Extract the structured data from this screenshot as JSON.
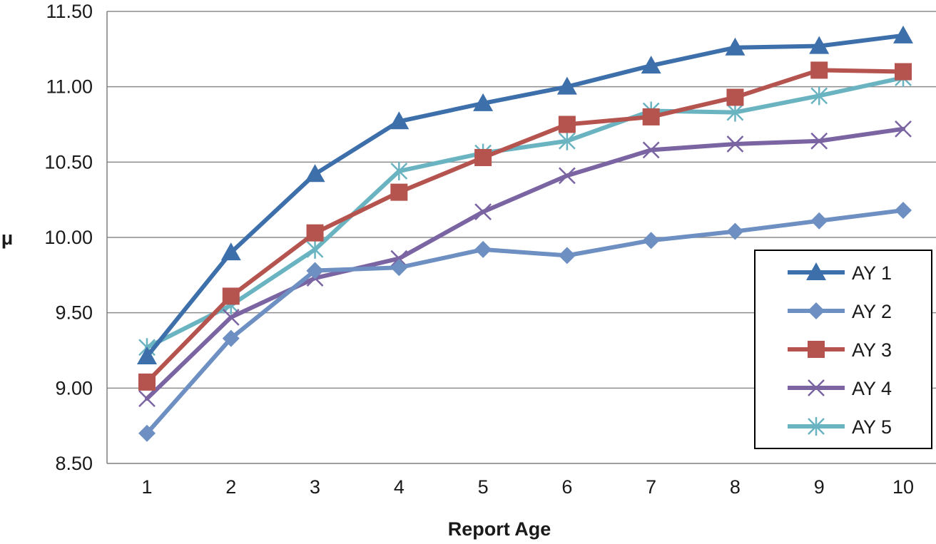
{
  "chart_data": {
    "type": "line",
    "title": "",
    "xlabel": "Report Age",
    "ylabel": "μ",
    "categories": [
      "1",
      "2",
      "3",
      "4",
      "5",
      "6",
      "7",
      "8",
      "9",
      "10"
    ],
    "yticks": [
      "8.50",
      "9.00",
      "9.50",
      "10.00",
      "10.50",
      "11.00",
      "11.50"
    ],
    "ylim": [
      8.5,
      11.5
    ],
    "grid": true,
    "legend_position": "right",
    "series": [
      {
        "name": "AY 1",
        "color": "#3d6fab",
        "marker": "triangle",
        "values": [
          9.21,
          9.9,
          10.42,
          10.77,
          10.89,
          11.0,
          11.14,
          11.26,
          11.27,
          11.34
        ]
      },
      {
        "name": "AY 2",
        "color": "#6d8fc2",
        "marker": "diamond",
        "values": [
          8.7,
          9.33,
          9.78,
          9.8,
          9.92,
          9.88,
          9.98,
          10.04,
          10.11,
          10.18
        ]
      },
      {
        "name": "AY 3",
        "color": "#b5544f",
        "marker": "square",
        "values": [
          9.04,
          9.61,
          10.03,
          10.3,
          10.53,
          10.75,
          10.8,
          10.93,
          11.11,
          11.1
        ]
      },
      {
        "name": "AY 4",
        "color": "#7a64a2",
        "marker": "x",
        "values": [
          8.93,
          9.47,
          9.73,
          9.86,
          10.17,
          10.41,
          10.58,
          10.62,
          10.64,
          10.72
        ]
      },
      {
        "name": "AY 5",
        "color": "#6ab3c1",
        "marker": "asterisk",
        "values": [
          9.27,
          9.55,
          9.92,
          10.44,
          10.56,
          10.64,
          10.84,
          10.83,
          10.94,
          11.06
        ]
      }
    ]
  }
}
